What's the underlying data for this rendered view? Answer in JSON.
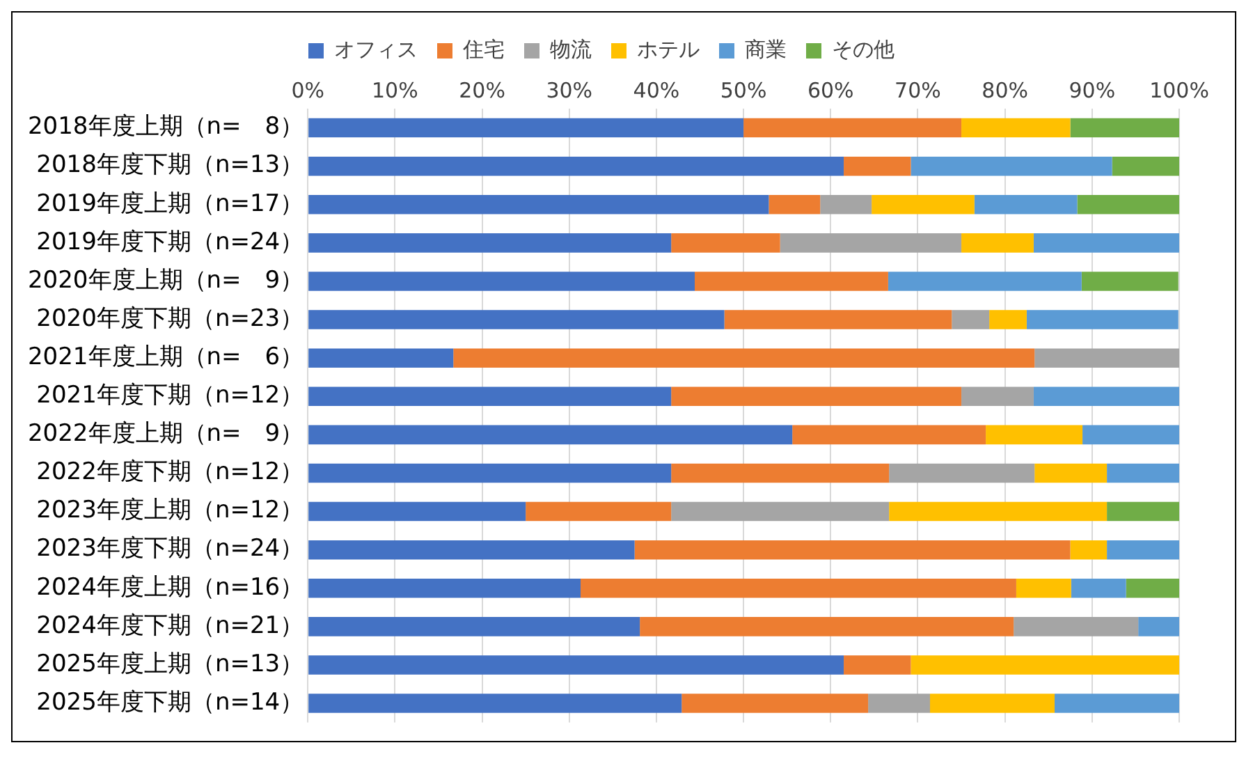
{
  "chart_data": {
    "type": "bar",
    "orientation": "horizontal",
    "stacked": true,
    "categories": [
      "2018年度上期（n=　8）",
      "2018年度下期（n=13）",
      "2019年度上期（n=17）",
      "2019年度下期（n=24）",
      "2020年度上期（n=　9）",
      "2020年度下期（n=23）",
      "2021年度上期（n=　6）",
      "2021年度下期（n=12）",
      "2022年度上期（n=　9）",
      "2022年度下期（n=12）",
      "2023年度上期（n=12）",
      "2023年度下期（n=24）",
      "2024年度上期（n=16）",
      "2024年度下期（n=21）",
      "2025年度上期（n=13）",
      "2025年度下期（n=14）"
    ],
    "series": [
      {
        "name": "オフィス",
        "color": "#4472c4",
        "values": [
          50,
          61.5,
          52.9,
          41.7,
          44.4,
          47.8,
          16.7,
          41.7,
          55.6,
          41.7,
          25,
          37.5,
          31.3,
          38.1,
          61.5,
          42.9
        ]
      },
      {
        "name": "住宅",
        "color": "#ed7d31",
        "values": [
          25,
          7.7,
          5.9,
          12.5,
          22.2,
          26.1,
          66.7,
          33.3,
          22.2,
          25,
          16.7,
          50,
          50,
          42.9,
          7.7,
          21.4
        ]
      },
      {
        "name": "物流",
        "color": "#a5a5a5",
        "values": [
          0,
          0,
          5.9,
          20.8,
          0,
          4.3,
          16.7,
          8.3,
          0,
          16.7,
          25,
          0,
          0,
          14.3,
          0,
          7.1
        ]
      },
      {
        "name": "ホテル",
        "color": "#ffc000",
        "values": [
          12.5,
          0,
          11.8,
          8.3,
          0,
          4.3,
          0,
          0,
          11.1,
          8.3,
          25,
          4.2,
          6.3,
          0,
          30.8,
          14.3
        ]
      },
      {
        "name": "商業",
        "color": "#5b9bd5",
        "values": [
          0,
          23.1,
          11.8,
          16.7,
          22.2,
          17.4,
          0,
          16.7,
          11.1,
          8.3,
          0,
          8.3,
          6.3,
          4.8,
          0,
          14.3
        ]
      },
      {
        "name": "その他",
        "color": "#70ad47",
        "values": [
          12.5,
          7.7,
          11.8,
          0,
          11.1,
          0,
          0,
          0,
          0,
          0,
          8.3,
          0,
          6.3,
          0,
          0,
          0
        ]
      }
    ],
    "xlim": [
      0,
      100
    ],
    "xticks": [
      {
        "value": 0,
        "label": "0%"
      },
      {
        "value": 10,
        "label": "10%"
      },
      {
        "value": 20,
        "label": "20%"
      },
      {
        "value": 30,
        "label": "30%"
      },
      {
        "value": 40,
        "label": "40%"
      },
      {
        "value": 50,
        "label": "50%"
      },
      {
        "value": 60,
        "label": "60%"
      },
      {
        "value": 70,
        "label": "70%"
      },
      {
        "value": 80,
        "label": "80%"
      },
      {
        "value": 90,
        "label": "90%"
      },
      {
        "value": 100,
        "label": "100%"
      }
    ],
    "grid": "x",
    "legend": "top"
  }
}
